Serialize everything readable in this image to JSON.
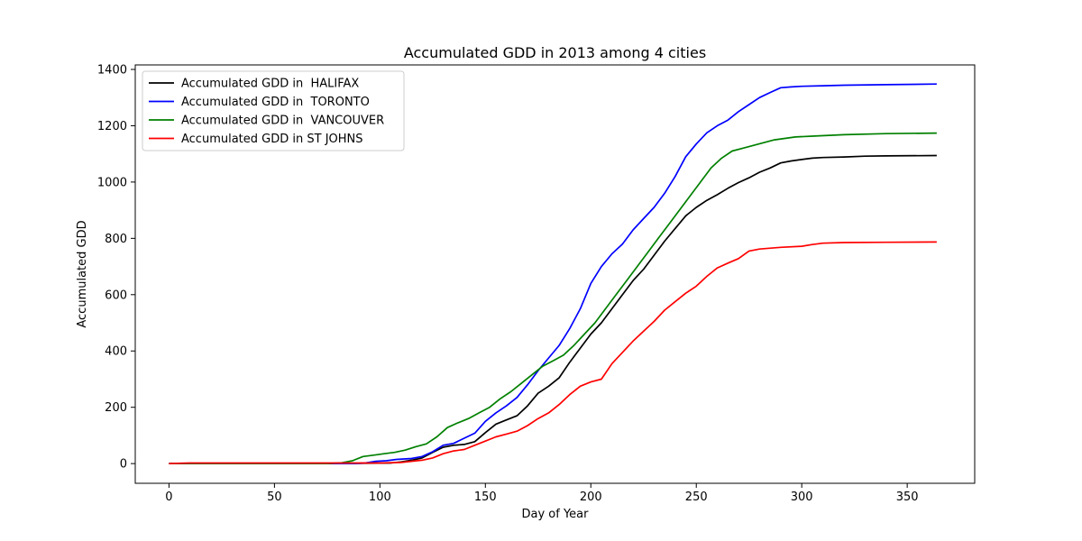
{
  "chart_data": {
    "type": "line",
    "title": "Accumulated GDD in 2013 among 4 cities",
    "xlabel": "Day of Year",
    "ylabel": "Accumulated GDD",
    "xlim": [
      -16,
      382
    ],
    "ylim": [
      -70,
      1416
    ],
    "xticks": [
      0,
      50,
      100,
      150,
      200,
      250,
      300,
      350
    ],
    "yticks": [
      0,
      200,
      400,
      600,
      800,
      1000,
      1200,
      1400
    ],
    "grid": false,
    "legend_position": "top-left",
    "series": [
      {
        "name": "Accumulated GDD in  HALIFAX",
        "color": "#000000",
        "points": [
          [
            0,
            0
          ],
          [
            80,
            0
          ],
          [
            105,
            2
          ],
          [
            110,
            6
          ],
          [
            115,
            12
          ],
          [
            120,
            20
          ],
          [
            125,
            40
          ],
          [
            130,
            58
          ],
          [
            135,
            65
          ],
          [
            140,
            68
          ],
          [
            145,
            78
          ],
          [
            150,
            110
          ],
          [
            155,
            140
          ],
          [
            160,
            155
          ],
          [
            165,
            170
          ],
          [
            170,
            205
          ],
          [
            175,
            250
          ],
          [
            180,
            275
          ],
          [
            185,
            305
          ],
          [
            190,
            360
          ],
          [
            195,
            410
          ],
          [
            200,
            460
          ],
          [
            205,
            500
          ],
          [
            210,
            550
          ],
          [
            215,
            600
          ],
          [
            220,
            650
          ],
          [
            225,
            690
          ],
          [
            230,
            740
          ],
          [
            235,
            790
          ],
          [
            240,
            835
          ],
          [
            245,
            880
          ],
          [
            250,
            910
          ],
          [
            255,
            935
          ],
          [
            260,
            955
          ],
          [
            265,
            978
          ],
          [
            270,
            998
          ],
          [
            275,
            1015
          ],
          [
            280,
            1035
          ],
          [
            285,
            1050
          ],
          [
            290,
            1068
          ],
          [
            295,
            1075
          ],
          [
            300,
            1080
          ],
          [
            305,
            1085
          ],
          [
            310,
            1087
          ],
          [
            320,
            1089
          ],
          [
            330,
            1092
          ],
          [
            340,
            1093
          ],
          [
            364,
            1094
          ]
        ]
      },
      {
        "name": "Accumulated GDD in  TORONTO",
        "color": "#0000ff",
        "points": [
          [
            0,
            0
          ],
          [
            88,
            0
          ],
          [
            93,
            2
          ],
          [
            98,
            8
          ],
          [
            103,
            10
          ],
          [
            108,
            15
          ],
          [
            115,
            18
          ],
          [
            120,
            25
          ],
          [
            125,
            42
          ],
          [
            130,
            65
          ],
          [
            135,
            72
          ],
          [
            140,
            90
          ],
          [
            145,
            108
          ],
          [
            150,
            150
          ],
          [
            155,
            180
          ],
          [
            160,
            205
          ],
          [
            165,
            235
          ],
          [
            170,
            280
          ],
          [
            175,
            330
          ],
          [
            180,
            375
          ],
          [
            185,
            420
          ],
          [
            190,
            480
          ],
          [
            195,
            550
          ],
          [
            200,
            640
          ],
          [
            205,
            700
          ],
          [
            210,
            745
          ],
          [
            215,
            780
          ],
          [
            220,
            830
          ],
          [
            225,
            870
          ],
          [
            230,
            910
          ],
          [
            235,
            960
          ],
          [
            240,
            1020
          ],
          [
            245,
            1090
          ],
          [
            250,
            1135
          ],
          [
            255,
            1175
          ],
          [
            260,
            1200
          ],
          [
            265,
            1220
          ],
          [
            270,
            1250
          ],
          [
            275,
            1275
          ],
          [
            280,
            1300
          ],
          [
            285,
            1318
          ],
          [
            290,
            1335
          ],
          [
            295,
            1338
          ],
          [
            300,
            1340
          ],
          [
            310,
            1342
          ],
          [
            320,
            1344
          ],
          [
            340,
            1346
          ],
          [
            364,
            1348
          ]
        ]
      },
      {
        "name": "Accumulated GDD in  VANCOUVER",
        "color": "#008000",
        "points": [
          [
            0,
            0
          ],
          [
            75,
            0
          ],
          [
            82,
            3
          ],
          [
            87,
            10
          ],
          [
            92,
            25
          ],
          [
            97,
            30
          ],
          [
            102,
            35
          ],
          [
            107,
            40
          ],
          [
            112,
            48
          ],
          [
            117,
            60
          ],
          [
            122,
            70
          ],
          [
            127,
            95
          ],
          [
            132,
            128
          ],
          [
            137,
            145
          ],
          [
            142,
            160
          ],
          [
            147,
            180
          ],
          [
            152,
            200
          ],
          [
            157,
            230
          ],
          [
            162,
            255
          ],
          [
            167,
            285
          ],
          [
            172,
            315
          ],
          [
            177,
            345
          ],
          [
            182,
            365
          ],
          [
            187,
            385
          ],
          [
            192,
            420
          ],
          [
            197,
            460
          ],
          [
            202,
            500
          ],
          [
            207,
            550
          ],
          [
            212,
            600
          ],
          [
            217,
            650
          ],
          [
            222,
            700
          ],
          [
            227,
            750
          ],
          [
            232,
            800
          ],
          [
            237,
            850
          ],
          [
            242,
            900
          ],
          [
            247,
            950
          ],
          [
            252,
            1000
          ],
          [
            257,
            1050
          ],
          [
            262,
            1085
          ],
          [
            267,
            1110
          ],
          [
            272,
            1120
          ],
          [
            277,
            1130
          ],
          [
            282,
            1140
          ],
          [
            287,
            1150
          ],
          [
            292,
            1155
          ],
          [
            297,
            1160
          ],
          [
            305,
            1163
          ],
          [
            320,
            1168
          ],
          [
            340,
            1172
          ],
          [
            364,
            1174
          ]
        ]
      },
      {
        "name": "Accumulated GDD in ST JOHNS",
        "color": "#ff0000",
        "points": [
          [
            0,
            0
          ],
          [
            10,
            2
          ],
          [
            100,
            2
          ],
          [
            110,
            4
          ],
          [
            115,
            8
          ],
          [
            120,
            12
          ],
          [
            125,
            20
          ],
          [
            130,
            35
          ],
          [
            135,
            45
          ],
          [
            140,
            50
          ],
          [
            145,
            65
          ],
          [
            150,
            80
          ],
          [
            155,
            95
          ],
          [
            160,
            105
          ],
          [
            165,
            115
          ],
          [
            170,
            135
          ],
          [
            175,
            160
          ],
          [
            180,
            180
          ],
          [
            185,
            210
          ],
          [
            190,
            245
          ],
          [
            195,
            275
          ],
          [
            200,
            290
          ],
          [
            205,
            300
          ],
          [
            210,
            355
          ],
          [
            215,
            395
          ],
          [
            220,
            435
          ],
          [
            225,
            470
          ],
          [
            230,
            505
          ],
          [
            235,
            545
          ],
          [
            240,
            575
          ],
          [
            245,
            605
          ],
          [
            250,
            630
          ],
          [
            255,
            665
          ],
          [
            260,
            695
          ],
          [
            265,
            712
          ],
          [
            270,
            728
          ],
          [
            275,
            755
          ],
          [
            280,
            762
          ],
          [
            290,
            768
          ],
          [
            300,
            772
          ],
          [
            305,
            778
          ],
          [
            310,
            783
          ],
          [
            320,
            785
          ],
          [
            340,
            786
          ],
          [
            364,
            787
          ]
        ]
      }
    ]
  }
}
